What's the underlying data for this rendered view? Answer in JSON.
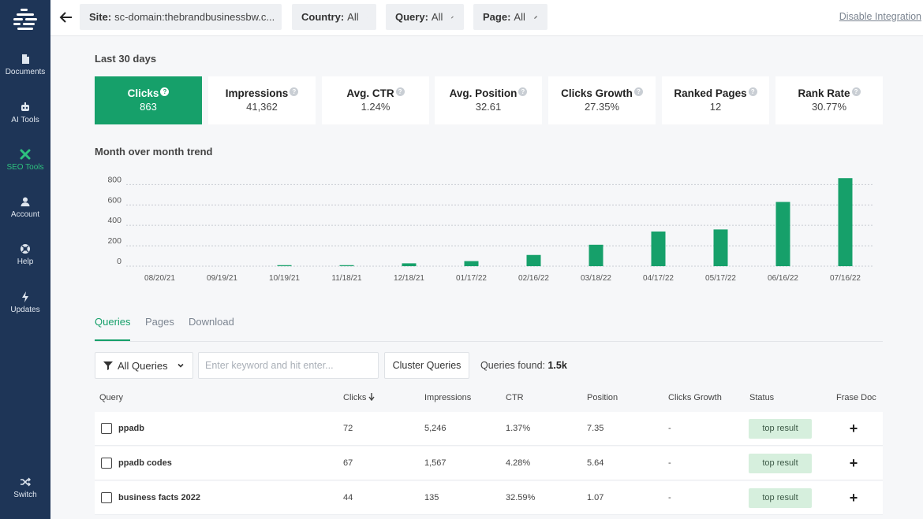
{
  "sidebar": {
    "items": [
      {
        "label": "Documents",
        "icon": "document-icon"
      },
      {
        "label": "AI Tools",
        "icon": "robot-icon"
      },
      {
        "label": "SEO Tools",
        "icon": "seo-tools-icon"
      },
      {
        "label": "Account",
        "icon": "user-icon"
      },
      {
        "label": "Help",
        "icon": "lifebuoy-icon"
      },
      {
        "label": "Updates",
        "icon": "bolt-icon"
      }
    ],
    "switch_label": "Switch"
  },
  "topbar": {
    "site_label": "Site:",
    "site_value": "sc-domain:thebrandbusinessbw.c...",
    "country_label": "Country:",
    "country_value": "All",
    "query_label": "Query:",
    "query_value": "All",
    "page_label": "Page:",
    "page_value": "All",
    "disable_link": "Disable Integration"
  },
  "period": "Last 30 days",
  "stats": [
    {
      "label": "Clicks",
      "value": "863"
    },
    {
      "label": "Impressions",
      "value": "41,362"
    },
    {
      "label": "Avg. CTR",
      "value": "1.24%"
    },
    {
      "label": "Avg. Position",
      "value": "32.61"
    },
    {
      "label": "Clicks Growth",
      "value": "27.35%"
    },
    {
      "label": "Ranked Pages",
      "value": "12"
    },
    {
      "label": "Rank Rate",
      "value": "30.77%"
    }
  ],
  "trend_title": "Month over month trend",
  "chart_data": {
    "type": "bar",
    "categories": [
      "08/20/21",
      "09/19/21",
      "10/19/21",
      "11/18/21",
      "12/18/21",
      "01/17/22",
      "02/16/22",
      "03/18/22",
      "04/17/22",
      "05/17/22",
      "06/16/22",
      "07/16/22"
    ],
    "values": [
      0,
      0,
      10,
      10,
      28,
      50,
      110,
      210,
      340,
      360,
      630,
      863
    ],
    "yticks": [
      0,
      200,
      400,
      600,
      800
    ],
    "ylim": [
      0,
      880
    ],
    "grid": true,
    "color": "#16a06a"
  },
  "tabs": [
    "Queries",
    "Pages",
    "Download"
  ],
  "toolbar": {
    "filter_label": "All Queries",
    "search_placeholder": "Enter keyword and hit enter...",
    "cluster_label": "Cluster Queries",
    "found_label": "Queries found:",
    "found_value": "1.5k"
  },
  "table": {
    "headers": [
      "Query",
      "Clicks",
      "Impressions",
      "CTR",
      "Position",
      "Clicks Growth",
      "Status",
      "Frase Doc"
    ],
    "rows": [
      {
        "query": "ppadb",
        "clicks": "72",
        "impressions": "5,246",
        "ctr": "1.37%",
        "position": "7.35",
        "growth": "-",
        "status": "top result"
      },
      {
        "query": "ppadb codes",
        "clicks": "67",
        "impressions": "1,567",
        "ctr": "4.28%",
        "position": "5.64",
        "growth": "-",
        "status": "top result"
      },
      {
        "query": "business facts 2022",
        "clicks": "44",
        "impressions": "135",
        "ctr": "32.59%",
        "position": "1.07",
        "growth": "-",
        "status": "top result"
      }
    ]
  },
  "colors": {
    "accent": "#16a06a",
    "sidebar": "#1e3557",
    "badge": "#d6efdd"
  }
}
